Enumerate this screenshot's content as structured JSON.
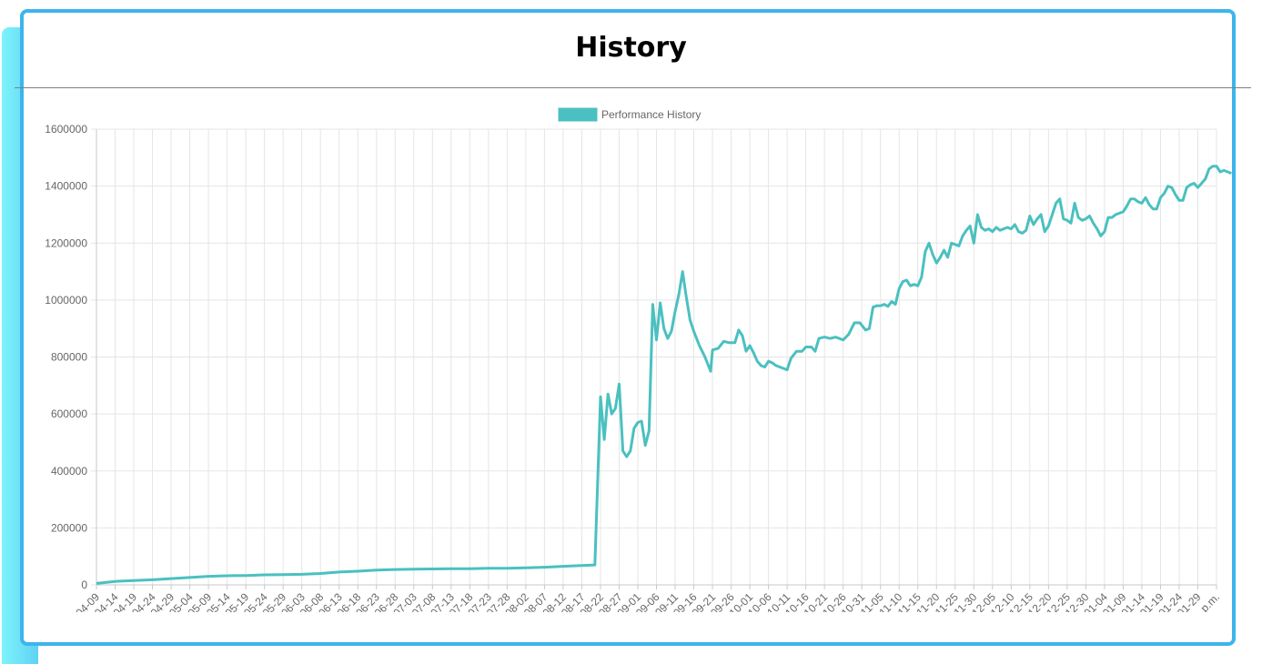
{
  "page": {
    "title": "History"
  },
  "colors": {
    "line": "#4bc0c0",
    "frame": "#3db4ec",
    "accent_left": "#6fe3f8",
    "grid": "#e5e5e5",
    "tick_text": "#666666"
  },
  "chart_data": {
    "type": "line",
    "title": "History",
    "xlabel": "",
    "ylabel": "",
    "ylim": [
      0,
      1600000
    ],
    "yticks": [
      "1600000",
      "1400000",
      "1200000",
      "1000000",
      "800000",
      "600000",
      "400000",
      "200000",
      "0"
    ],
    "grid": true,
    "legend": {
      "position": "top-center",
      "entries": [
        "Performance History"
      ]
    },
    "x_tick_labels": [
      "04-09",
      "04-14",
      "04-19",
      "04-24",
      "04-29",
      "05-04",
      "05-09",
      "05-14",
      "05-19",
      "05-24",
      "05-29",
      "06-03",
      "06-08",
      "06-13",
      "06-18",
      "06-23",
      "06-28",
      "07-03",
      "07-08",
      "07-13",
      "07-18",
      "07-23",
      "07-28",
      "08-02",
      "08-07",
      "08-12",
      "08-17",
      "08-22",
      "08-27",
      "09-01",
      "09-06",
      "09-11",
      "09-16",
      "09-21",
      "09-26",
      "10-01",
      "10-06",
      "10-11",
      "10-16",
      "10-21",
      "10-26",
      "10-31",
      "11-05",
      "11-10",
      "11-15",
      "11-20",
      "11-25",
      "11-30",
      "12-05",
      "12-10",
      "12-15",
      "12-20",
      "12-25",
      "12-30",
      "01-04",
      "01-09",
      "01-14",
      "01-19",
      "01-24",
      "01-29",
      "p.m."
    ],
    "series": [
      {
        "name": "Performance History",
        "color": "#4bc0c0",
        "points": [
          [
            0,
            5000
          ],
          [
            1,
            12000
          ],
          [
            2,
            15000
          ],
          [
            3,
            18000
          ],
          [
            4,
            22000
          ],
          [
            5,
            26000
          ],
          [
            6,
            30000
          ],
          [
            7,
            32000
          ],
          [
            8,
            33000
          ],
          [
            9,
            35000
          ],
          [
            10,
            36000
          ],
          [
            11,
            37000
          ],
          [
            12,
            40000
          ],
          [
            13,
            45000
          ],
          [
            14,
            48000
          ],
          [
            15,
            52000
          ],
          [
            16,
            54000
          ],
          [
            17,
            55000
          ],
          [
            18,
            56000
          ],
          [
            19,
            57000
          ],
          [
            20,
            57000
          ],
          [
            21,
            58000
          ],
          [
            22,
            58000
          ],
          [
            23,
            60000
          ],
          [
            24,
            62000
          ],
          [
            25,
            65000
          ],
          [
            26,
            68000
          ],
          [
            26.7,
            70000
          ],
          [
            27.0,
            660000
          ],
          [
            27.2,
            510000
          ],
          [
            27.4,
            670000
          ],
          [
            27.6,
            600000
          ],
          [
            27.8,
            620000
          ],
          [
            28.0,
            705000
          ],
          [
            28.2,
            470000
          ],
          [
            28.4,
            450000
          ],
          [
            28.6,
            470000
          ],
          [
            28.8,
            550000
          ],
          [
            29.0,
            570000
          ],
          [
            29.2,
            575000
          ],
          [
            29.4,
            490000
          ],
          [
            29.6,
            540000
          ],
          [
            29.8,
            985000
          ],
          [
            30.0,
            860000
          ],
          [
            30.2,
            990000
          ],
          [
            30.4,
            900000
          ],
          [
            30.6,
            865000
          ],
          [
            30.8,
            890000
          ],
          [
            31.0,
            960000
          ],
          [
            31.2,
            1020000
          ],
          [
            31.4,
            1100000
          ],
          [
            31.6,
            1010000
          ],
          [
            31.8,
            930000
          ],
          [
            32.0,
            890000
          ],
          [
            32.3,
            840000
          ],
          [
            32.6,
            800000
          ],
          [
            32.9,
            750000
          ],
          [
            33.0,
            825000
          ],
          [
            33.3,
            830000
          ],
          [
            33.6,
            855000
          ],
          [
            33.9,
            850000
          ],
          [
            34.2,
            850000
          ],
          [
            34.4,
            895000
          ],
          [
            34.6,
            875000
          ],
          [
            34.8,
            820000
          ],
          [
            35.0,
            840000
          ],
          [
            35.2,
            815000
          ],
          [
            35.4,
            785000
          ],
          [
            35.6,
            770000
          ],
          [
            35.8,
            765000
          ],
          [
            36.0,
            785000
          ],
          [
            36.2,
            780000
          ],
          [
            36.4,
            770000
          ],
          [
            36.8,
            760000
          ],
          [
            37.0,
            755000
          ],
          [
            37.2,
            795000
          ],
          [
            37.5,
            820000
          ],
          [
            37.8,
            820000
          ],
          [
            38.0,
            835000
          ],
          [
            38.3,
            835000
          ],
          [
            38.5,
            820000
          ],
          [
            38.7,
            865000
          ],
          [
            39.0,
            870000
          ],
          [
            39.3,
            865000
          ],
          [
            39.6,
            870000
          ],
          [
            40.0,
            860000
          ],
          [
            40.3,
            880000
          ],
          [
            40.6,
            920000
          ],
          [
            40.9,
            920000
          ],
          [
            41.2,
            895000
          ],
          [
            41.4,
            900000
          ],
          [
            41.6,
            975000
          ],
          [
            41.8,
            980000
          ],
          [
            42.0,
            980000
          ],
          [
            42.2,
            985000
          ],
          [
            42.4,
            978000
          ],
          [
            42.6,
            995000
          ],
          [
            42.8,
            985000
          ],
          [
            43.0,
            1040000
          ],
          [
            43.2,
            1065000
          ],
          [
            43.4,
            1070000
          ],
          [
            43.6,
            1050000
          ],
          [
            43.8,
            1055000
          ],
          [
            44.0,
            1050000
          ],
          [
            44.2,
            1080000
          ],
          [
            44.4,
            1170000
          ],
          [
            44.6,
            1200000
          ],
          [
            44.8,
            1160000
          ],
          [
            45.0,
            1130000
          ],
          [
            45.2,
            1150000
          ],
          [
            45.4,
            1175000
          ],
          [
            45.6,
            1150000
          ],
          [
            45.8,
            1200000
          ],
          [
            46.0,
            1195000
          ],
          [
            46.2,
            1190000
          ],
          [
            46.4,
            1225000
          ],
          [
            46.6,
            1245000
          ],
          [
            46.8,
            1260000
          ],
          [
            47.0,
            1200000
          ],
          [
            47.2,
            1300000
          ],
          [
            47.4,
            1255000
          ],
          [
            47.6,
            1245000
          ],
          [
            47.8,
            1250000
          ],
          [
            48.0,
            1240000
          ],
          [
            48.2,
            1255000
          ],
          [
            48.4,
            1245000
          ],
          [
            48.6,
            1250000
          ],
          [
            48.8,
            1255000
          ],
          [
            49.0,
            1250000
          ],
          [
            49.2,
            1265000
          ],
          [
            49.4,
            1240000
          ],
          [
            49.6,
            1235000
          ],
          [
            49.8,
            1245000
          ],
          [
            50.0,
            1295000
          ],
          [
            50.2,
            1265000
          ],
          [
            50.4,
            1285000
          ],
          [
            50.6,
            1300000
          ],
          [
            50.8,
            1240000
          ],
          [
            51.0,
            1260000
          ],
          [
            51.2,
            1300000
          ],
          [
            51.4,
            1340000
          ],
          [
            51.6,
            1355000
          ],
          [
            51.8,
            1285000
          ],
          [
            52.0,
            1280000
          ],
          [
            52.2,
            1270000
          ],
          [
            52.4,
            1340000
          ],
          [
            52.6,
            1290000
          ],
          [
            52.8,
            1280000
          ],
          [
            53.0,
            1285000
          ],
          [
            53.2,
            1295000
          ],
          [
            53.4,
            1270000
          ],
          [
            53.6,
            1250000
          ],
          [
            53.8,
            1225000
          ],
          [
            54.0,
            1240000
          ],
          [
            54.2,
            1290000
          ],
          [
            54.4,
            1290000
          ],
          [
            54.6,
            1300000
          ],
          [
            54.8,
            1305000
          ],
          [
            55.0,
            1310000
          ],
          [
            55.2,
            1330000
          ],
          [
            55.4,
            1355000
          ],
          [
            55.6,
            1355000
          ],
          [
            55.8,
            1345000
          ],
          [
            56.0,
            1340000
          ],
          [
            56.2,
            1360000
          ],
          [
            56.4,
            1335000
          ],
          [
            56.6,
            1320000
          ],
          [
            56.8,
            1320000
          ],
          [
            57.0,
            1360000
          ],
          [
            57.2,
            1375000
          ],
          [
            57.4,
            1400000
          ],
          [
            57.6,
            1395000
          ],
          [
            57.8,
            1370000
          ],
          [
            58.0,
            1350000
          ],
          [
            58.2,
            1350000
          ],
          [
            58.4,
            1395000
          ],
          [
            58.6,
            1405000
          ],
          [
            58.8,
            1410000
          ],
          [
            59.0,
            1395000
          ],
          [
            59.2,
            1410000
          ],
          [
            59.4,
            1425000
          ],
          [
            59.6,
            1460000
          ],
          [
            59.8,
            1470000
          ],
          [
            60.0,
            1470000
          ],
          [
            60.2,
            1450000
          ],
          [
            60.4,
            1455000
          ],
          [
            60.6,
            1450000
          ],
          [
            60.8,
            1445000
          ]
        ]
      }
    ]
  }
}
